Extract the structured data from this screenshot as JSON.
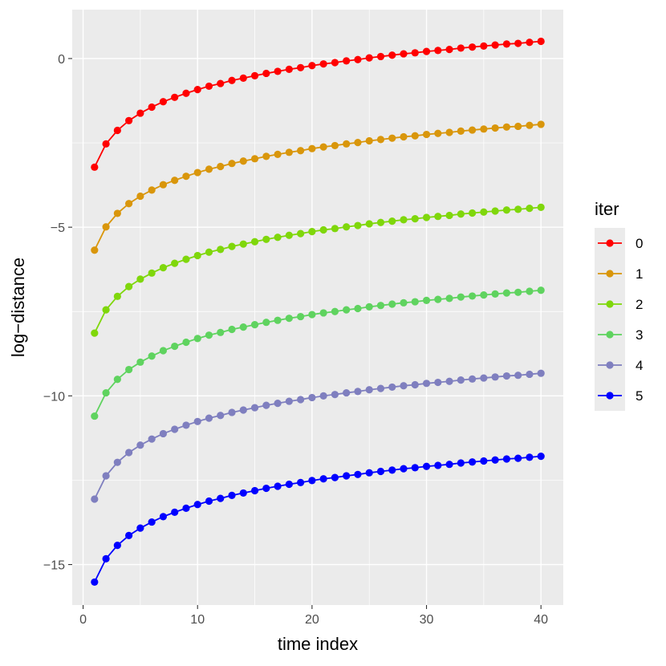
{
  "chart_data": {
    "type": "line",
    "title": "",
    "xlabel": "time index",
    "ylabel": "log−distance",
    "xlim": [
      -0.95,
      41.95
    ],
    "ylim": [
      -16.2,
      1.45
    ],
    "x_ticks": [
      0,
      10,
      20,
      30,
      40
    ],
    "y_ticks": [
      0,
      -5,
      -10,
      -15
    ],
    "x_tick_labels": [
      "0",
      "10",
      "20",
      "30",
      "40"
    ],
    "y_tick_labels": [
      "0",
      "−5",
      "−10",
      "−15"
    ],
    "grid": true,
    "legend": {
      "title": "iter",
      "position": "right"
    },
    "x": [
      1,
      2,
      3,
      4,
      5,
      6,
      7,
      8,
      9,
      10,
      11,
      12,
      13,
      14,
      15,
      16,
      17,
      18,
      19,
      20,
      21,
      22,
      23,
      24,
      25,
      26,
      27,
      28,
      29,
      30,
      31,
      32,
      33,
      34,
      35,
      36,
      37,
      38,
      39,
      40
    ],
    "series": [
      {
        "name": "0",
        "color": "#ff0000",
        "values": [
          -3.22,
          -2.53,
          -2.13,
          -1.84,
          -1.62,
          -1.44,
          -1.28,
          -1.15,
          -1.03,
          -0.92,
          -0.82,
          -0.74,
          -0.65,
          -0.58,
          -0.51,
          -0.44,
          -0.38,
          -0.32,
          -0.27,
          -0.21,
          -0.16,
          -0.12,
          -0.07,
          -0.03,
          0.02,
          0.06,
          0.1,
          0.14,
          0.17,
          0.21,
          0.24,
          0.27,
          0.31,
          0.34,
          0.37,
          0.4,
          0.43,
          0.45,
          0.48,
          0.51
        ]
      },
      {
        "name": "1",
        "color": "#d9960b",
        "values": [
          -5.68,
          -4.99,
          -4.59,
          -4.3,
          -4.08,
          -3.9,
          -3.74,
          -3.61,
          -3.49,
          -3.38,
          -3.28,
          -3.2,
          -3.11,
          -3.04,
          -2.97,
          -2.9,
          -2.84,
          -2.78,
          -2.73,
          -2.67,
          -2.62,
          -2.58,
          -2.53,
          -2.49,
          -2.44,
          -2.4,
          -2.36,
          -2.32,
          -2.29,
          -2.25,
          -2.22,
          -2.19,
          -2.15,
          -2.12,
          -2.09,
          -2.06,
          -2.03,
          -2.01,
          -1.98,
          -1.95
        ]
      },
      {
        "name": "2",
        "color": "#7fd70b",
        "values": [
          -8.14,
          -7.45,
          -7.05,
          -6.76,
          -6.54,
          -6.36,
          -6.2,
          -6.07,
          -5.95,
          -5.84,
          -5.74,
          -5.66,
          -5.57,
          -5.5,
          -5.43,
          -5.36,
          -5.3,
          -5.24,
          -5.19,
          -5.13,
          -5.08,
          -5.04,
          -4.99,
          -4.95,
          -4.9,
          -4.86,
          -4.82,
          -4.78,
          -4.75,
          -4.71,
          -4.68,
          -4.65,
          -4.61,
          -4.58,
          -4.55,
          -4.52,
          -4.49,
          -4.47,
          -4.44,
          -4.41
        ]
      },
      {
        "name": "3",
        "color": "#5fd35f",
        "values": [
          -10.6,
          -9.91,
          -9.51,
          -9.22,
          -9.0,
          -8.82,
          -8.66,
          -8.53,
          -8.41,
          -8.3,
          -8.2,
          -8.12,
          -8.03,
          -7.96,
          -7.89,
          -7.82,
          -7.76,
          -7.7,
          -7.65,
          -7.59,
          -7.54,
          -7.5,
          -7.45,
          -7.41,
          -7.36,
          -7.32,
          -7.28,
          -7.24,
          -7.21,
          -7.17,
          -7.14,
          -7.11,
          -7.07,
          -7.04,
          -7.01,
          -6.98,
          -6.95,
          -6.93,
          -6.9,
          -6.87
        ]
      },
      {
        "name": "4",
        "color": "#7f7fbf",
        "values": [
          -13.06,
          -12.37,
          -11.97,
          -11.68,
          -11.46,
          -11.28,
          -11.12,
          -10.99,
          -10.87,
          -10.76,
          -10.66,
          -10.58,
          -10.49,
          -10.42,
          -10.35,
          -10.28,
          -10.22,
          -10.16,
          -10.11,
          -10.05,
          -10.0,
          -9.96,
          -9.91,
          -9.87,
          -9.82,
          -9.78,
          -9.74,
          -9.7,
          -9.67,
          -9.63,
          -9.6,
          -9.57,
          -9.53,
          -9.5,
          -9.47,
          -9.44,
          -9.41,
          -9.39,
          -9.36,
          -9.33
        ]
      },
      {
        "name": "5",
        "color": "#0000ff",
        "values": [
          -15.52,
          -14.83,
          -14.43,
          -14.14,
          -13.92,
          -13.74,
          -13.58,
          -13.45,
          -13.33,
          -13.22,
          -13.12,
          -13.04,
          -12.95,
          -12.88,
          -12.81,
          -12.74,
          -12.68,
          -12.62,
          -12.57,
          -12.51,
          -12.46,
          -12.42,
          -12.37,
          -12.33,
          -12.28,
          -12.24,
          -12.2,
          -12.16,
          -12.13,
          -12.09,
          -12.06,
          -12.03,
          -11.99,
          -11.96,
          -11.93,
          -11.9,
          -11.87,
          -11.85,
          -11.82,
          -11.79
        ]
      }
    ]
  }
}
